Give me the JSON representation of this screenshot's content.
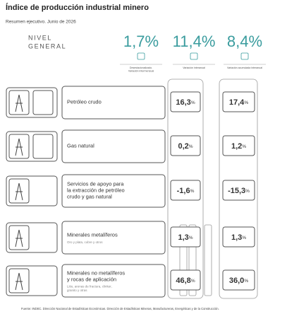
{
  "header": {
    "title": "Índice de producción industrial minero",
    "subtitle": "Resumen ejecutivo. Junio de 2026",
    "level": [
      "NIVEL",
      "GENERAL"
    ]
  },
  "headline": [
    {
      "number": "1,7",
      "unit": "%",
      "caption": [
        "Desestacionalizado.",
        "Variación intermensual"
      ]
    },
    {
      "number": "11,4",
      "unit": "%",
      "caption": [
        "Variación interanual"
      ]
    },
    {
      "number": "8,4",
      "unit": "%",
      "caption": [
        "Variación acumulada interanual"
      ]
    }
  ],
  "rows": [
    {
      "label": [
        "Petróleo crudo"
      ],
      "interanual": {
        "number": "16,3",
        "unit": "%"
      },
      "acumulada": {
        "number": "17,4",
        "unit": "%"
      }
    },
    {
      "label": [
        "Gas natural"
      ],
      "interanual": {
        "number": "0,2",
        "unit": "%"
      },
      "acumulada": {
        "number": "1,2",
        "unit": "%"
      }
    },
    {
      "label": [
        "Servicios de apoyo para",
        "la extracción de petróleo",
        "crudo y gas natural"
      ],
      "interanual": {
        "number": "-1,6",
        "unit": "%"
      },
      "acumulada": {
        "number": "-15,3",
        "unit": "%"
      }
    },
    {
      "label": [
        "Minerales metalíferos"
      ],
      "note": [
        "Oro y plata, cobre y otros"
      ],
      "interanual": {
        "number": "1,3",
        "unit": "%"
      },
      "acumulada": {
        "number": "1,3",
        "unit": "%"
      }
    },
    {
      "label": [
        "Minerales no metalíferos",
        "y rocas de aplicación"
      ],
      "note": [
        "Litio, arenas de fractura, clinker,",
        "granito y otras"
      ],
      "interanual": {
        "number": "46,8",
        "unit": "%"
      },
      "acumulada": {
        "number": "36,0",
        "unit": "%"
      }
    }
  ],
  "source": "Fuente: INDEC. Dirección Nacional de Estadísticas Económicas. Dirección de Estadísticas Mineras, Manufactureras, Energéticas y de la Construcción."
}
